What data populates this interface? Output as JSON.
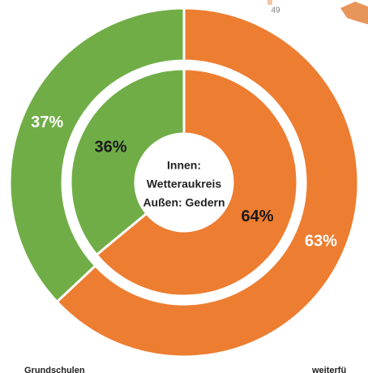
{
  "chart_data": {
    "type": "donut",
    "center_text": [
      "Innen:",
      "Wetteraukreis",
      "Außen: Gedern"
    ],
    "annotation": "49",
    "categories": [
      "Grundschulen",
      "weiterfü"
    ],
    "colors": [
      "#70ad47",
      "#ed7d31"
    ],
    "series": [
      {
        "ring": "inner",
        "values": [
          36,
          64
        ],
        "value_labels": [
          "36%",
          "64%"
        ]
      },
      {
        "ring": "outer",
        "values": [
          37,
          63
        ],
        "value_labels": [
          "37%",
          "63%"
        ]
      }
    ]
  }
}
